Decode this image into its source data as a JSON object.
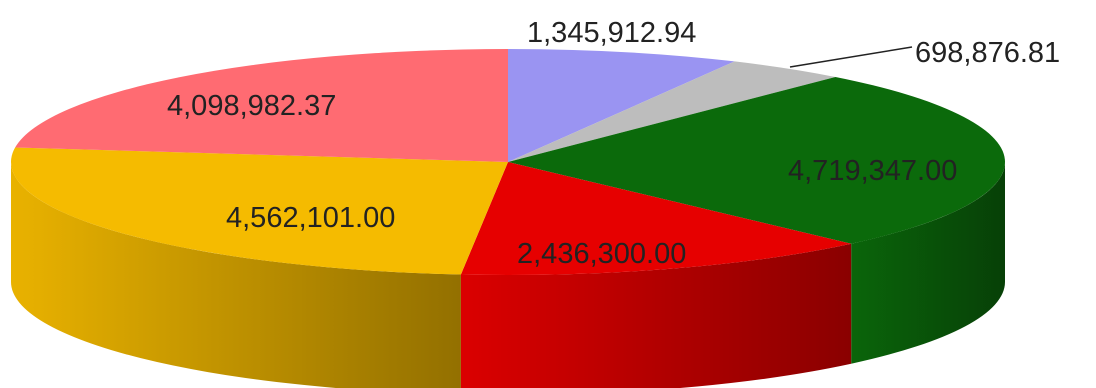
{
  "chart_data": {
    "type": "pie",
    "title": "",
    "legend": "none",
    "slices": [
      {
        "value": 1345912.94,
        "label": "1,345,912.94",
        "color": "#9a94f2"
      },
      {
        "value": 698876.81,
        "label": "698,876.81",
        "color": "#bdbdbd"
      },
      {
        "value": 4719347.0,
        "label": "4,719,347.00",
        "color": "#0b6a0b"
      },
      {
        "value": 2436300.0,
        "label": "2,436,300.00",
        "color": "#e60000"
      },
      {
        "value": 4562101.0,
        "label": "4,562,101.00",
        "color": "#f5bb00"
      },
      {
        "value": 4098982.37,
        "label": "4,098,982.37",
        "color": "#ff6b72"
      }
    ]
  }
}
